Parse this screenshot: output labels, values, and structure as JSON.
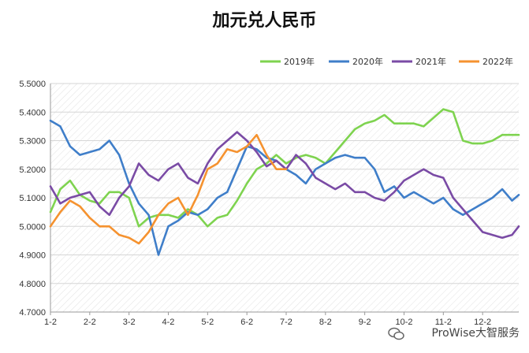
{
  "chart_data": {
    "type": "line",
    "title": "加元兑人民币",
    "ylim": [
      4.7,
      5.5
    ],
    "y_ticks": [
      "4.7000",
      "4.8000",
      "4.9000",
      "5.0000",
      "5.1000",
      "5.2000",
      "5.3000",
      "5.4000",
      "5.5000"
    ],
    "x_ticks": [
      "1-2",
      "2-2",
      "3-2",
      "4-2",
      "5-2",
      "6-2",
      "7-2",
      "8-2",
      "9-2",
      "10-2",
      "11-2",
      "12-2"
    ],
    "x_domain": [
      1,
      12.92
    ],
    "legend_position": "top-right",
    "grid": "horizontal",
    "series": [
      {
        "name": "2019年",
        "color": "#7ed34f",
        "x": [
          1.0,
          1.25,
          1.5,
          1.75,
          2.0,
          2.25,
          2.5,
          2.75,
          3.0,
          3.25,
          3.5,
          3.75,
          4.0,
          4.25,
          4.5,
          4.75,
          5.0,
          5.25,
          5.5,
          5.75,
          6.0,
          6.25,
          6.5,
          6.75,
          7.0,
          7.25,
          7.5,
          7.75,
          8.0,
          8.25,
          8.5,
          8.75,
          9.0,
          9.25,
          9.5,
          9.75,
          10.0,
          10.25,
          10.5,
          10.75,
          11.0,
          11.25,
          11.5,
          11.75,
          12.0,
          12.25,
          12.5,
          12.75,
          12.92
        ],
        "values": [
          5.05,
          5.13,
          5.16,
          5.11,
          5.09,
          5.08,
          5.12,
          5.12,
          5.1,
          5.0,
          5.03,
          5.04,
          5.04,
          5.03,
          5.06,
          5.04,
          5.0,
          5.03,
          5.04,
          5.09,
          5.15,
          5.2,
          5.22,
          5.25,
          5.22,
          5.24,
          5.25,
          5.24,
          5.22,
          5.26,
          5.3,
          5.34,
          5.36,
          5.37,
          5.39,
          5.36,
          5.36,
          5.36,
          5.35,
          5.38,
          5.41,
          5.4,
          5.3,
          5.29,
          5.29,
          5.3,
          5.32,
          5.32,
          5.32
        ]
      },
      {
        "name": "2020年",
        "color": "#3f7ec9",
        "x": [
          1.0,
          1.25,
          1.5,
          1.75,
          2.0,
          2.25,
          2.5,
          2.75,
          3.0,
          3.25,
          3.5,
          3.75,
          4.0,
          4.25,
          4.5,
          4.75,
          5.0,
          5.25,
          5.5,
          5.75,
          6.0,
          6.25,
          6.5,
          6.75,
          7.0,
          7.25,
          7.5,
          7.75,
          8.0,
          8.25,
          8.5,
          8.75,
          9.0,
          9.25,
          9.5,
          9.75,
          10.0,
          10.25,
          10.5,
          10.75,
          11.0,
          11.25,
          11.5,
          11.75,
          12.0,
          12.25,
          12.5,
          12.75,
          12.92
        ],
        "values": [
          5.37,
          5.35,
          5.28,
          5.25,
          5.26,
          5.27,
          5.3,
          5.25,
          5.15,
          5.08,
          5.04,
          4.9,
          5.0,
          5.02,
          5.05,
          5.04,
          5.06,
          5.1,
          5.12,
          5.2,
          5.28,
          5.27,
          5.24,
          5.23,
          5.2,
          5.18,
          5.15,
          5.2,
          5.22,
          5.24,
          5.25,
          5.24,
          5.24,
          5.2,
          5.12,
          5.14,
          5.1,
          5.12,
          5.1,
          5.08,
          5.1,
          5.06,
          5.04,
          5.06,
          5.08,
          5.1,
          5.13,
          5.09,
          5.11
        ]
      },
      {
        "name": "2021年",
        "color": "#7a4ba5",
        "x": [
          1.0,
          1.25,
          1.5,
          1.75,
          2.0,
          2.25,
          2.5,
          2.75,
          3.0,
          3.25,
          3.5,
          3.75,
          4.0,
          4.25,
          4.5,
          4.75,
          5.0,
          5.25,
          5.5,
          5.75,
          6.0,
          6.25,
          6.5,
          6.75,
          7.0,
          7.25,
          7.5,
          7.75,
          8.0,
          8.25,
          8.5,
          8.75,
          9.0,
          9.25,
          9.5,
          9.75,
          10.0,
          10.25,
          10.5,
          10.75,
          11.0,
          11.25,
          11.5,
          11.75,
          12.0,
          12.25,
          12.5,
          12.75,
          12.92
        ],
        "values": [
          5.14,
          5.08,
          5.1,
          5.11,
          5.12,
          5.07,
          5.04,
          5.1,
          5.14,
          5.22,
          5.18,
          5.16,
          5.2,
          5.22,
          5.17,
          5.15,
          5.22,
          5.27,
          5.3,
          5.33,
          5.3,
          5.26,
          5.21,
          5.23,
          5.2,
          5.25,
          5.22,
          5.17,
          5.15,
          5.13,
          5.15,
          5.12,
          5.12,
          5.1,
          5.09,
          5.12,
          5.16,
          5.18,
          5.2,
          5.18,
          5.17,
          5.1,
          5.06,
          5.02,
          4.98,
          4.97,
          4.96,
          4.97,
          5.0
        ]
      },
      {
        "name": "2022年",
        "color": "#f5922f",
        "x": [
          1.0,
          1.25,
          1.5,
          1.75,
          2.0,
          2.25,
          2.5,
          2.75,
          3.0,
          3.25,
          3.5,
          3.75,
          4.0,
          4.25,
          4.5,
          4.75,
          5.0,
          5.25,
          5.5,
          5.75,
          6.0,
          6.25,
          6.5,
          6.75,
          7.0
        ],
        "values": [
          5.0,
          5.05,
          5.09,
          5.07,
          5.03,
          5.0,
          5.0,
          4.97,
          4.96,
          4.94,
          4.98,
          5.04,
          5.08,
          5.1,
          5.04,
          5.11,
          5.2,
          5.22,
          5.27,
          5.26,
          5.28,
          5.32,
          5.25,
          5.2,
          5.2
        ]
      }
    ]
  },
  "watermark": {
    "text": "ProWise大智服务"
  }
}
